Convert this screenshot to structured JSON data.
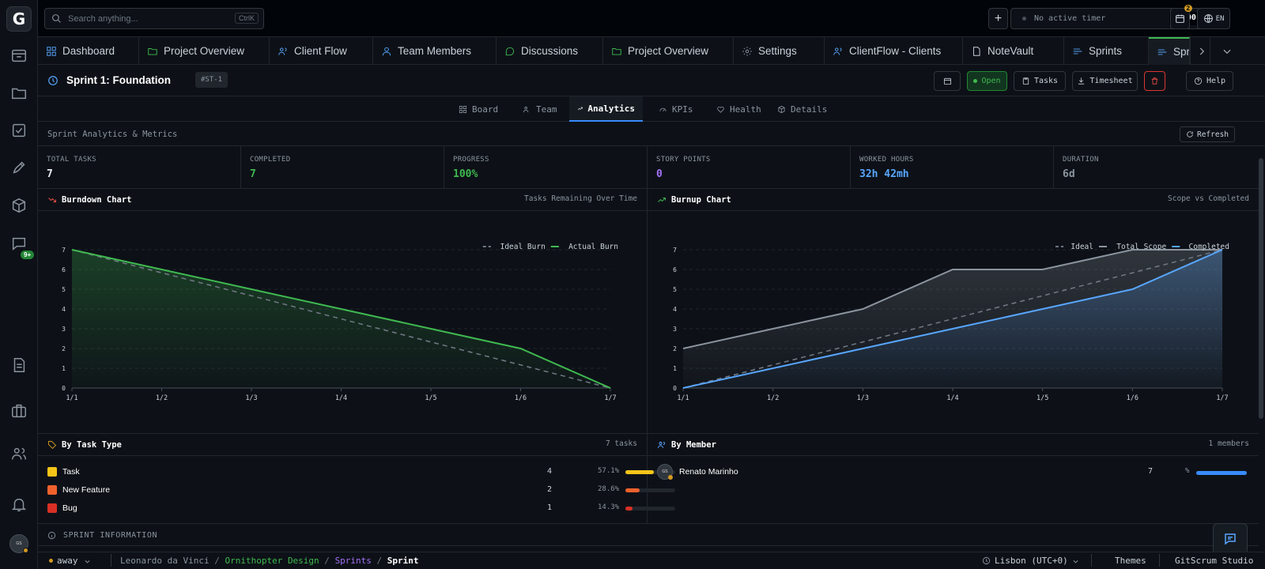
{
  "rail": {
    "chat_badge": "9+",
    "avatar_text": "GS"
  },
  "topbar": {
    "search_placeholder": "Search anything...",
    "search_shortcut": "CtrlK",
    "timer_label": "No active timer",
    "timer_value": "00:00:00",
    "calendar_badge": "2",
    "language": "EN"
  },
  "tabs": [
    {
      "label": "Dashboard",
      "icon": "grid-icon"
    },
    {
      "label": "Project Overview",
      "icon": "folder-icon"
    },
    {
      "label": "Client Flow",
      "icon": "users-icon"
    },
    {
      "label": "Team Members",
      "icon": "user-icon"
    },
    {
      "label": "Discussions",
      "icon": "chat-icon"
    },
    {
      "label": "Project Overview",
      "icon": "folder-icon"
    },
    {
      "label": "Settings",
      "icon": "gear-icon"
    },
    {
      "label": "ClientFlow - Clients",
      "icon": "users-icon"
    },
    {
      "label": "NoteVault",
      "icon": "file-icon"
    },
    {
      "label": "Sprints",
      "icon": "sprint-icon"
    },
    {
      "label": "Spr",
      "icon": "sprint-icon"
    }
  ],
  "sprint": {
    "title": "Sprint 1: Foundation",
    "code": "#ST-1",
    "status": "Open",
    "tasks_label": "Tasks",
    "timesheet_label": "Timesheet",
    "help_label": "Help"
  },
  "subtabs": [
    {
      "label": "Board"
    },
    {
      "label": "Team"
    },
    {
      "label": "Analytics"
    },
    {
      "label": "KPIs"
    },
    {
      "label": "Health"
    },
    {
      "label": "Details"
    }
  ],
  "section": {
    "title": "Sprint Analytics & Metrics",
    "refresh_label": "Refresh"
  },
  "stats": [
    {
      "label": "TOTAL TASKS",
      "value": "7",
      "color": "#e6edf3"
    },
    {
      "label": "COMPLETED",
      "value": "7",
      "color": "#3fb950"
    },
    {
      "label": "PROGRESS",
      "value": "100%",
      "color": "#3fb950"
    },
    {
      "label": "STORY POINTS",
      "value": "0",
      "color": "#a371f7"
    },
    {
      "label": "WORKED HOURS",
      "value": "32h 42mh",
      "color": "#58a6ff"
    },
    {
      "label": "DURATION",
      "value": "6d",
      "color": "#8b949e"
    }
  ],
  "burndown": {
    "title": "Burndown Chart",
    "subtitle": "Tasks Remaining Over Time"
  },
  "burnup": {
    "title": "Burnup Chart",
    "subtitle": "Scope vs Completed"
  },
  "chart_data": [
    {
      "type": "line",
      "title": "Burndown Chart",
      "x": [
        "1/1",
        "1/2",
        "1/3",
        "1/4",
        "1/5",
        "1/6",
        "1/7"
      ],
      "yticks": [
        0,
        1,
        2,
        3,
        4,
        5,
        6,
        7
      ],
      "ylim": [
        0,
        7
      ],
      "legend": "top-right",
      "grid": true,
      "series": [
        {
          "name": "Ideal Burn",
          "values": [
            7,
            5.83,
            4.67,
            3.5,
            2.33,
            1.17,
            0
          ],
          "color": "#6e7681",
          "dashed": true
        },
        {
          "name": "Actual Burn",
          "values": [
            7,
            6,
            5,
            4,
            3,
            2,
            0
          ],
          "color": "#3fb950",
          "dashed": false
        }
      ]
    },
    {
      "type": "line",
      "title": "Burnup Chart",
      "x": [
        "1/1",
        "1/2",
        "1/3",
        "1/4",
        "1/5",
        "1/6",
        "1/7"
      ],
      "yticks": [
        0,
        1,
        2,
        3,
        4,
        5,
        6,
        7
      ],
      "ylim": [
        0,
        7
      ],
      "legend": "top-right",
      "grid": true,
      "series": [
        {
          "name": "Ideal",
          "values": [
            0,
            1.17,
            2.33,
            3.5,
            4.67,
            5.83,
            7
          ],
          "color": "#6e7681",
          "dashed": true
        },
        {
          "name": "Total Scope",
          "values": [
            2,
            3,
            4,
            6,
            6,
            7,
            7
          ],
          "color": "#8b949e",
          "dashed": false
        },
        {
          "name": "Completed",
          "values": [
            0,
            1,
            2,
            3,
            4,
            5,
            7
          ],
          "color": "#58a6ff",
          "dashed": false
        }
      ]
    }
  ],
  "task_types": {
    "title": "By Task Type",
    "count_label": "7 tasks",
    "items": [
      {
        "name": "Task",
        "count": "4",
        "percent": "57.1%",
        "fraction": 0.571,
        "color": "#f5c518"
      },
      {
        "name": "New Feature",
        "count": "2",
        "percent": "28.6%",
        "fraction": 0.286,
        "color": "#f0612d"
      },
      {
        "name": "Bug",
        "count": "1",
        "percent": "14.3%",
        "fraction": 0.143,
        "color": "#d93025"
      }
    ]
  },
  "members": {
    "title": "By Member",
    "count_label": "1 members",
    "items": [
      {
        "name": "Renato Marinho",
        "count": "7",
        "percent": "%",
        "fraction": 1.0,
        "avatar_text": "GS"
      }
    ]
  },
  "sprint_info": {
    "title": "SPRINT INFORMATION"
  },
  "footer": {
    "status": "away",
    "crumbs": [
      "Leonardo da Vinci",
      "Ornithopter Design",
      "Sprints",
      "Sprint"
    ],
    "timezone": "Lisbon (UTC+0)",
    "themes": "Themes",
    "studio": "GitScrum Studio"
  }
}
